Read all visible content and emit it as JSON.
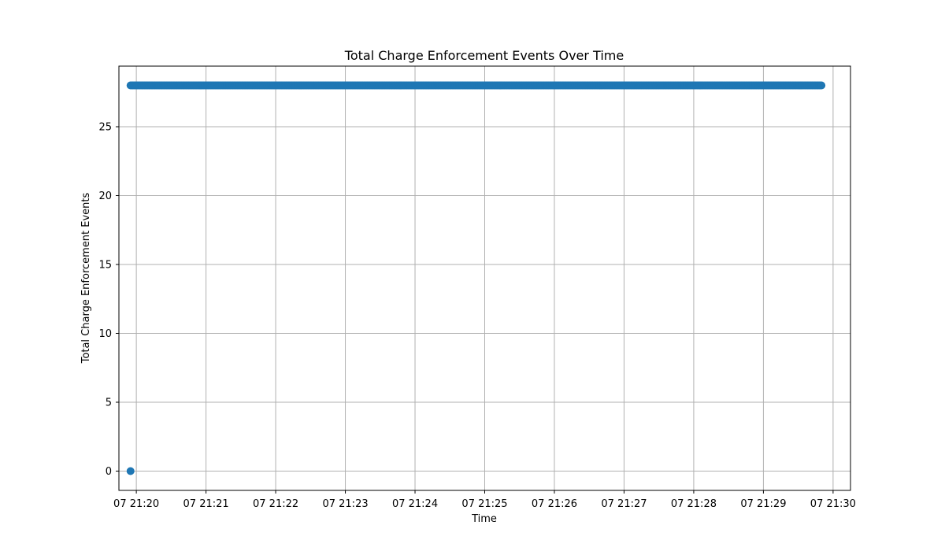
{
  "chart_data": {
    "type": "scatter",
    "title": "Total Charge Enforcement Events Over Time",
    "xlabel": "Time",
    "ylabel": "Total Charge Enforcement Events",
    "x_tick_labels": [
      "07 21:20",
      "07 21:21",
      "07 21:22",
      "07 21:23",
      "07 21:24",
      "07 21:25",
      "07 21:26",
      "07 21:27",
      "07 21:28",
      "07 21:29",
      "07 21:30"
    ],
    "y_ticks": [
      0,
      5,
      10,
      15,
      20,
      25
    ],
    "xlim": [
      "07 21:19:45",
      "07 21:30:15"
    ],
    "ylim": [
      -1.4,
      29.4
    ],
    "grid": true,
    "marker_color": "#1f77b4",
    "series": [
      {
        "points": [
          {
            "x": "07 21:19:55",
            "y": 0
          },
          {
            "x": "07 21:19:55",
            "y": 28
          },
          {
            "x": "07 21:29:50",
            "y": 28
          }
        ],
        "sampling": "points at y = 28 recorded continuously from 07 21:19:55 to 07 21:29:50"
      }
    ]
  }
}
